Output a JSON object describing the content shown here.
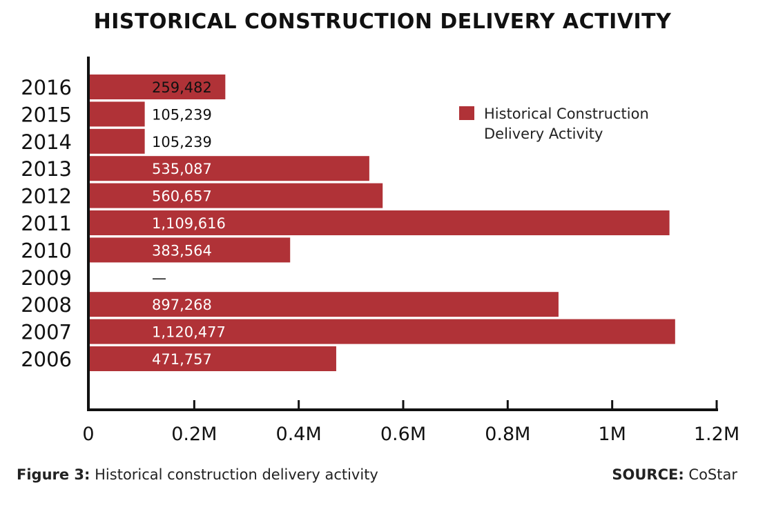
{
  "title": "HISTORICAL CONSTRUCTION DELIVERY ACTIVITY",
  "footer": {
    "caption_label": "Figure 3:",
    "caption_text": "Historical construction delivery activity",
    "source_label": "SOURCE:",
    "source_text": "CoStar"
  },
  "colors": {
    "bar": "#b03237",
    "axis": "#111111"
  },
  "chart_data": {
    "type": "bar",
    "orientation": "horizontal",
    "categories": [
      "2016",
      "2015",
      "2014",
      "2013",
      "2012",
      "2011",
      "2010",
      "2009",
      "2008",
      "2007",
      "2006"
    ],
    "series": [
      {
        "name": "Historical Construction Delivery Activity",
        "values": [
          259482,
          105239,
          105239,
          535087,
          560657,
          1109616,
          383564,
          0,
          897268,
          1120477,
          471757
        ]
      }
    ],
    "data_labels": [
      "259,482",
      "105,239",
      "105,239",
      "535,087",
      "560,657",
      "1,109,616",
      "383,564",
      "—",
      "897,268",
      "1,120,477",
      "471,757"
    ],
    "x_ticks": [
      "0",
      "0.2M",
      "0.4M",
      "0.6M",
      "0.8M",
      "1M",
      "1.2M"
    ],
    "xlim": [
      0,
      1200000
    ],
    "legend": {
      "position": "top-right",
      "lines": [
        "Historical Construction",
        "Delivery Activity"
      ]
    },
    "grid": false
  }
}
